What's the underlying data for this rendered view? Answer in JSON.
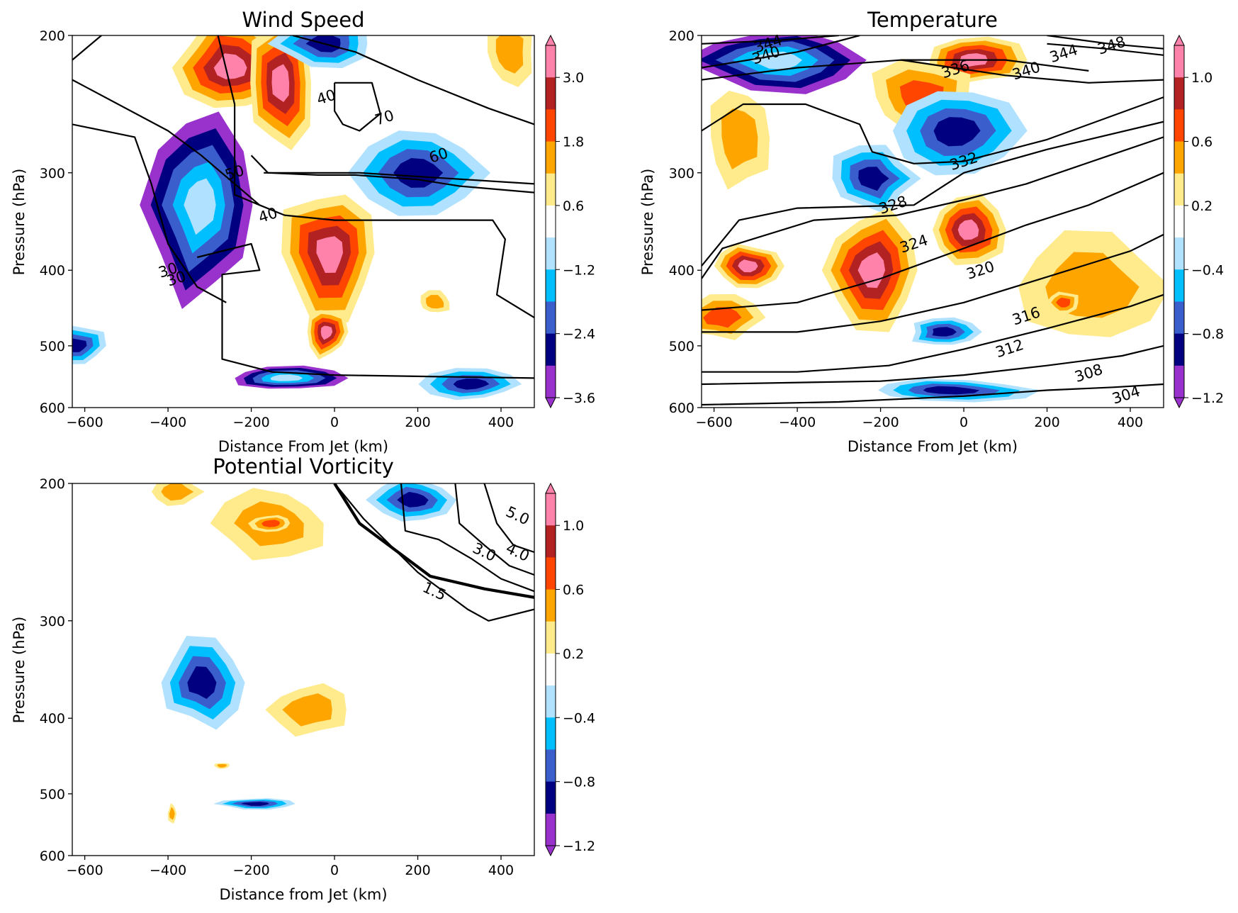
{
  "chart_data": [
    {
      "type": "contour",
      "id": "wind",
      "title": "Wind Speed",
      "xlabel": "Distance From Jet (km)",
      "ylabel": "Pressure (hPa)",
      "xlim": [
        -630,
        480
      ],
      "ylim": [
        600,
        200
      ],
      "y_scale": "log",
      "x_ticks": [
        -600,
        -400,
        -200,
        0,
        200,
        400
      ],
      "y_ticks": [
        200,
        300,
        400,
        500,
        600
      ],
      "colorbar": {
        "extend": "both",
        "ticks": [
          "−3.6",
          "−2.4",
          "−1.2",
          "0.6",
          "1.8",
          "3.0"
        ],
        "tick_values": [
          -3.6,
          -2.4,
          -1.2,
          0.6,
          1.8,
          3.0
        ],
        "levels": [
          -3.6,
          -3.0,
          -2.4,
          -1.8,
          -1.2,
          -0.6,
          0.6,
          1.2,
          1.8,
          2.4,
          3.0,
          3.6
        ]
      },
      "contour_labels": [
        "40",
        "30",
        "40",
        "50",
        "60",
        "70",
        "30"
      ],
      "anomaly_blobs": [
        {
          "category": "strong_pos",
          "x": -250,
          "y": 220,
          "rx": 140,
          "ry": 30
        },
        {
          "category": "strong_pos",
          "x": -130,
          "y": 230,
          "rx": 80,
          "ry": 45
        },
        {
          "category": "strong_pos",
          "x": -10,
          "y": 380,
          "rx": 120,
          "ry": 70
        },
        {
          "category": "strong_pos",
          "x": -20,
          "y": 480,
          "rx": 50,
          "ry": 35
        },
        {
          "category": "strong_neg",
          "x": -320,
          "y": 330,
          "rx": 130,
          "ry": 90
        },
        {
          "category": "strong_neg",
          "x": -120,
          "y": 550,
          "rx": 140,
          "ry": 20
        },
        {
          "category": "neg",
          "x": 200,
          "y": 300,
          "rx": 150,
          "ry": 40
        },
        {
          "category": "neg",
          "x": 330,
          "y": 560,
          "rx": 110,
          "ry": 25
        },
        {
          "category": "neg",
          "x": -620,
          "y": 500,
          "rx": 70,
          "ry": 30
        },
        {
          "category": "neg",
          "x": -20,
          "y": 205,
          "rx": 120,
          "ry": 15
        },
        {
          "category": "mild_pos",
          "x": 420,
          "y": 210,
          "rx": 60,
          "ry": 20
        },
        {
          "category": "mild_pos",
          "x": 240,
          "y": 440,
          "rx": 40,
          "ry": 15
        }
      ],
      "contour_lines": [
        [
          [
            -630,
            228
          ],
          [
            -400,
            265
          ],
          [
            -320,
            285
          ],
          [
            -180,
            330
          ]
        ],
        [
          [
            -630,
            260
          ],
          [
            -480,
            270
          ],
          [
            -440,
            310
          ],
          [
            -400,
            370
          ],
          [
            -330,
            420
          ],
          [
            -260,
            440
          ]
        ],
        [
          [
            -200,
            285
          ],
          [
            -160,
            300
          ],
          [
            -40,
            302
          ],
          [
            50,
            302
          ],
          [
            200,
            306
          ],
          [
            300,
            312
          ],
          [
            480,
            318
          ]
        ],
        [
          [
            -170,
            300
          ],
          [
            -40,
            300
          ],
          [
            60,
            300
          ],
          [
            480,
            310
          ]
        ],
        [
          [
            -280,
            200
          ],
          [
            -240,
            245
          ],
          [
            -240,
            320
          ],
          [
            -180,
            330
          ],
          [
            -120,
            340
          ],
          [
            0,
            345
          ],
          [
            200,
            345
          ],
          [
            380,
            345
          ],
          [
            410,
            365
          ],
          [
            390,
            430
          ],
          [
            480,
            460
          ]
        ],
        [
          [
            -330,
            385
          ],
          [
            -200,
            370
          ],
          [
            -180,
            400
          ],
          [
            -270,
            405
          ],
          [
            -270,
            520
          ],
          [
            -150,
            540
          ],
          [
            0,
            545
          ],
          [
            480,
            550
          ]
        ],
        [
          [
            0,
            230
          ],
          [
            90,
            230
          ],
          [
            110,
            252
          ],
          [
            60,
            265
          ],
          [
            20,
            260
          ],
          [
            0,
            250
          ],
          [
            0,
            230
          ]
        ],
        [
          [
            -630,
            215
          ],
          [
            -560,
            200
          ]
        ],
        [
          [
            -100,
            200
          ],
          [
            50,
            210
          ],
          [
            200,
            228
          ],
          [
            370,
            248
          ],
          [
            480,
            260
          ]
        ]
      ],
      "contour_label_positions": [
        [
          -20,
          240
        ],
        [
          -400,
          400
        ],
        [
          -160,
          340
        ],
        [
          -240,
          300
        ],
        [
          250,
          285
        ],
        [
          120,
          255
        ],
        [
          -380,
          410
        ]
      ]
    },
    {
      "type": "contour",
      "id": "temp",
      "title": "Temperature",
      "xlabel": "Distance From Jet (km)",
      "ylabel": "Pressure (hPa)",
      "xlim": [
        -630,
        480
      ],
      "ylim": [
        600,
        200
      ],
      "y_scale": "log",
      "x_ticks": [
        -600,
        -400,
        -200,
        0,
        200,
        400
      ],
      "y_ticks": [
        200,
        300,
        400,
        500,
        600
      ],
      "colorbar": {
        "extend": "both",
        "ticks": [
          "−1.2",
          "−0.8",
          "−0.4",
          "0.2",
          "0.6",
          "1.0"
        ],
        "tick_values": [
          -1.2,
          -0.8,
          -0.4,
          0.2,
          0.6,
          1.0
        ],
        "levels": [
          -1.2,
          -1.0,
          -0.8,
          -0.6,
          -0.4,
          -0.2,
          0.2,
          0.4,
          0.6,
          0.8,
          1.0,
          1.2
        ]
      },
      "isentrope_labels": [
        "348",
        "344",
        "344",
        "340",
        "340",
        "336",
        "332",
        "328",
        "324",
        "320",
        "316",
        "312",
        "308",
        "304"
      ],
      "anomaly_blobs": [
        {
          "category": "strong_neg",
          "x": -450,
          "y": 215,
          "rx": 200,
          "ry": 20
        },
        {
          "category": "strong_pos",
          "x": 20,
          "y": 215,
          "rx": 120,
          "ry": 15
        },
        {
          "category": "pos",
          "x": -100,
          "y": 240,
          "rx": 130,
          "ry": 25
        },
        {
          "category": "neg",
          "x": -20,
          "y": 265,
          "rx": 150,
          "ry": 35
        },
        {
          "category": "neg",
          "x": -220,
          "y": 305,
          "rx": 100,
          "ry": 30
        },
        {
          "category": "strong_pos",
          "x": -220,
          "y": 400,
          "rx": 120,
          "ry": 70
        },
        {
          "category": "strong_pos",
          "x": 10,
          "y": 355,
          "rx": 90,
          "ry": 35
        },
        {
          "category": "strong_pos",
          "x": -520,
          "y": 395,
          "rx": 80,
          "ry": 25
        },
        {
          "category": "pos",
          "x": -580,
          "y": 460,
          "rx": 90,
          "ry": 30
        },
        {
          "category": "mild_pos",
          "x": -540,
          "y": 270,
          "rx": 80,
          "ry": 40
        },
        {
          "category": "neg",
          "x": -50,
          "y": 480,
          "rx": 80,
          "ry": 20
        },
        {
          "category": "neg",
          "x": -40,
          "y": 570,
          "rx": 200,
          "ry": 20
        },
        {
          "category": "mild_pos",
          "x": 300,
          "y": 420,
          "rx": 180,
          "ry": 70
        },
        {
          "category": "pos",
          "x": 240,
          "y": 440,
          "rx": 40,
          "ry": 15
        }
      ],
      "isentropes": [
        [
          [
            -630,
            595
          ],
          [
            -300,
            590
          ],
          [
            0,
            580
          ],
          [
            200,
            570
          ],
          [
            360,
            565
          ],
          [
            480,
            560
          ]
        ],
        [
          [
            -630,
            560
          ],
          [
            -200,
            555
          ],
          [
            0,
            545
          ],
          [
            200,
            530
          ],
          [
            380,
            515
          ],
          [
            480,
            500
          ]
        ],
        [
          [
            -630,
            540
          ],
          [
            -400,
            540
          ],
          [
            -180,
            530
          ],
          [
            0,
            505
          ],
          [
            200,
            475
          ],
          [
            400,
            445
          ],
          [
            480,
            430
          ]
        ],
        [
          [
            -630,
            480
          ],
          [
            -400,
            480
          ],
          [
            -200,
            465
          ],
          [
            0,
            440
          ],
          [
            200,
            408
          ],
          [
            400,
            378
          ],
          [
            480,
            360
          ]
        ],
        [
          [
            -630,
            450
          ],
          [
            -400,
            440
          ],
          [
            -200,
            410
          ],
          [
            0,
            375
          ],
          [
            150,
            350
          ],
          [
            300,
            330
          ],
          [
            480,
            300
          ]
        ],
        [
          [
            -630,
            410
          ],
          [
            -580,
            375
          ],
          [
            -360,
            345
          ],
          [
            -160,
            340
          ],
          [
            0,
            325
          ],
          [
            150,
            310
          ],
          [
            350,
            285
          ],
          [
            480,
            270
          ]
        ],
        [
          [
            -630,
            395
          ],
          [
            -540,
            345
          ],
          [
            -400,
            333
          ],
          [
            -120,
            330
          ],
          [
            0,
            300
          ],
          [
            200,
            280
          ],
          [
            480,
            258
          ]
        ],
        [
          [
            -630,
            265
          ],
          [
            -530,
            245
          ],
          [
            -380,
            245
          ],
          [
            -250,
            260
          ],
          [
            -220,
            282
          ],
          [
            -120,
            292
          ],
          [
            0,
            290
          ],
          [
            200,
            272
          ],
          [
            480,
            240
          ]
        ],
        [
          [
            -630,
            228
          ],
          [
            -400,
            220
          ],
          [
            -150,
            215
          ],
          [
            100,
            225
          ],
          [
            300,
            230
          ],
          [
            480,
            228
          ]
        ],
        [
          [
            -630,
            220
          ],
          [
            -400,
            210
          ],
          [
            -250,
            200
          ]
        ],
        [
          [
            -150,
            215
          ],
          [
            100,
            215
          ],
          [
            300,
            222
          ]
        ],
        [
          [
            -630,
            205
          ],
          [
            -450,
            203
          ],
          [
            -300,
            200
          ]
        ],
        [
          [
            200,
            205
          ],
          [
            340,
            208
          ],
          [
            480,
            212
          ]
        ],
        [
          [
            200,
            200
          ],
          [
            350,
            205
          ],
          [
            480,
            208
          ]
        ]
      ],
      "isentrope_label_positions": [
        [
          355,
          206
        ],
        [
          -470,
          205
        ],
        [
          240,
          211
        ],
        [
          -475,
          212
        ],
        [
          150,
          222
        ],
        [
          -20,
          221
        ],
        [
          0,
          290
        ],
        [
          -170,
          330
        ],
        [
          -120,
          370
        ],
        [
          40,
          400
        ],
        [
          150,
          458
        ],
        [
          110,
          504
        ],
        [
          300,
          542
        ],
        [
          390,
          578
        ]
      ]
    },
    {
      "type": "contour",
      "id": "pv",
      "title": "Potential Vorticity",
      "xlabel": "Distance from Jet (km)",
      "ylabel": "Pressure (hPa)",
      "xlim": [
        -630,
        480
      ],
      "ylim": [
        600,
        200
      ],
      "y_scale": "log",
      "x_ticks": [
        -600,
        -400,
        -200,
        0,
        200,
        400
      ],
      "y_ticks": [
        200,
        300,
        400,
        500,
        600
      ],
      "colorbar": {
        "extend": "both",
        "ticks": [
          "−1.2",
          "−0.8",
          "−0.4",
          "0.2",
          "0.6",
          "1.0"
        ],
        "tick_values": [
          -1.2,
          -0.8,
          -0.4,
          0.2,
          0.6,
          1.0
        ],
        "levels": [
          -1.2,
          -1.0,
          -0.8,
          -0.6,
          -0.4,
          -0.2,
          0.2,
          0.4,
          0.6,
          0.8,
          1.0,
          1.2
        ]
      },
      "contour_labels": [
        "5.0",
        "4.0",
        "3.0",
        "1.5"
      ],
      "anomaly_blobs": [
        {
          "category": "mild_pos",
          "x": -150,
          "y": 225,
          "rx": 130,
          "ry": 22
        },
        {
          "category": "pos",
          "x": -150,
          "y": 225,
          "rx": 50,
          "ry": 6
        },
        {
          "category": "mild_pos",
          "x": -380,
          "y": 205,
          "rx": 60,
          "ry": 8
        },
        {
          "category": "neg",
          "x": 190,
          "y": 210,
          "rx": 100,
          "ry": 15
        },
        {
          "category": "neg",
          "x": -320,
          "y": 360,
          "rx": 100,
          "ry": 45
        },
        {
          "category": "mild_pos",
          "x": -60,
          "y": 390,
          "rx": 100,
          "ry": 30
        },
        {
          "category": "mild_pos",
          "x": -270,
          "y": 460,
          "rx": 18,
          "ry": 4
        },
        {
          "category": "neg",
          "x": -190,
          "y": 515,
          "rx": 90,
          "ry": 8
        },
        {
          "category": "mild_pos",
          "x": -390,
          "y": 530,
          "rx": 10,
          "ry": 15
        }
      ],
      "contour_lines": [
        [
          [
            360,
            200
          ],
          [
            390,
            225
          ],
          [
            430,
            240
          ],
          [
            480,
            245
          ]
        ],
        [
          [
            290,
            200
          ],
          [
            300,
            225
          ],
          [
            360,
            240
          ],
          [
            420,
            255
          ],
          [
            480,
            262
          ]
        ],
        [
          [
            160,
            200
          ],
          [
            170,
            230
          ],
          [
            250,
            236
          ],
          [
            330,
            250
          ],
          [
            400,
            265
          ],
          [
            480,
            275
          ]
        ],
        [
          [
            0,
            200
          ],
          [
            60,
            225
          ],
          [
            230,
            263
          ],
          [
            360,
            273
          ],
          [
            480,
            280
          ]
        ],
        [
          [
            0,
            200
          ],
          [
            70,
            222
          ],
          [
            200,
            260
          ],
          [
            320,
            290
          ],
          [
            370,
            300
          ],
          [
            480,
            290
          ]
        ]
      ],
      "contour_label_positions": [
        [
          440,
          220
        ],
        [
          440,
          245
        ],
        [
          360,
          245
        ],
        [
          240,
          275
        ]
      ]
    }
  ]
}
